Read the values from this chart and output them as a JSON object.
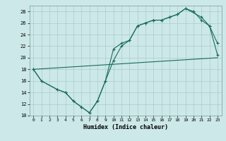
{
  "xlabel": "Humidex (Indice chaleur)",
  "bg_color": "#cce8e8",
  "grid_color": "#aacccc",
  "line_color": "#1a6b5a",
  "xlim": [
    -0.5,
    23.5
  ],
  "ylim": [
    10,
    29
  ],
  "yticks": [
    10,
    12,
    14,
    16,
    18,
    20,
    22,
    24,
    26,
    28
  ],
  "xticks": [
    0,
    1,
    2,
    3,
    4,
    5,
    6,
    7,
    8,
    9,
    10,
    11,
    12,
    13,
    14,
    15,
    16,
    17,
    18,
    19,
    20,
    21,
    22,
    23
  ],
  "line1_x": [
    0,
    23
  ],
  "line1_y": [
    18.0,
    20.0
  ],
  "line2_x": [
    0,
    1,
    3,
    4,
    5,
    6,
    7,
    8,
    9,
    10,
    11,
    12,
    13,
    14,
    15,
    16,
    17,
    18,
    19,
    21,
    22,
    23
  ],
  "line2_y": [
    18.0,
    16.0,
    14.5,
    14.0,
    12.5,
    11.5,
    10.5,
    12.5,
    16.0,
    19.5,
    22.0,
    23.0,
    25.5,
    26.0,
    26.5,
    26.5,
    27.0,
    27.5,
    28.5,
    27.0,
    25.5,
    22.5
  ],
  "line3_x": [
    0,
    1,
    3,
    4,
    5,
    6,
    7,
    8,
    9,
    10,
    11,
    12,
    13,
    14,
    15,
    16,
    17,
    18,
    19,
    20,
    21,
    22,
    23
  ],
  "line3_y": [
    18.0,
    16.0,
    14.5,
    14.0,
    12.5,
    11.5,
    10.5,
    12.5,
    16.0,
    21.5,
    22.5,
    23.0,
    25.5,
    26.0,
    26.5,
    26.5,
    27.0,
    27.5,
    28.5,
    28.0,
    26.5,
    25.5,
    20.5
  ]
}
